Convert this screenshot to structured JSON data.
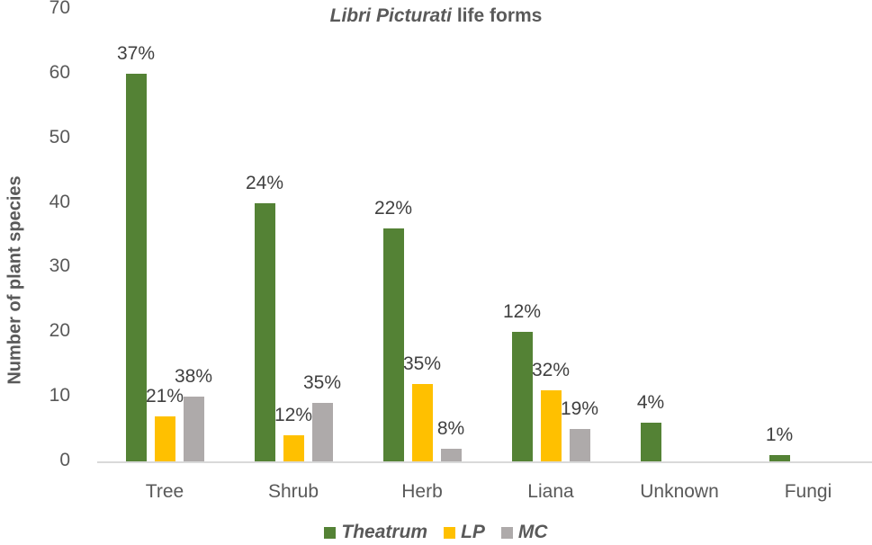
{
  "chart_data": {
    "type": "bar",
    "title_italic": "Libri Picturati",
    "title_rest": " life forms",
    "title": "Libri Picturati life forms",
    "xlabel": "",
    "ylabel": "Number of plant species",
    "ylim": [
      0,
      70
    ],
    "yticks": [
      "0",
      "10",
      "20",
      "30",
      "40",
      "50",
      "60",
      "70"
    ],
    "grid": false,
    "legend_position": "bottom",
    "categories": [
      "Tree",
      "Shrub",
      "Herb",
      "Liana",
      "Unknown",
      "Fungi"
    ],
    "series": [
      {
        "name": "Theatrum",
        "color": "#548235",
        "values": [
          60,
          40,
          36,
          20,
          6,
          1
        ],
        "labels": [
          "37%",
          "24%",
          "22%",
          "12%",
          "4%",
          "1%"
        ]
      },
      {
        "name": "LP",
        "color": "#ffc000",
        "values": [
          7,
          4,
          12,
          11,
          null,
          null
        ],
        "labels": [
          "21%",
          "12%",
          "35%",
          "32%",
          "",
          ""
        ]
      },
      {
        "name": "MC",
        "color": "#aeaaaa",
        "values": [
          10,
          9,
          2,
          5,
          null,
          null
        ],
        "labels": [
          "38%",
          "35%",
          "8%",
          "19%",
          "",
          ""
        ]
      }
    ]
  }
}
